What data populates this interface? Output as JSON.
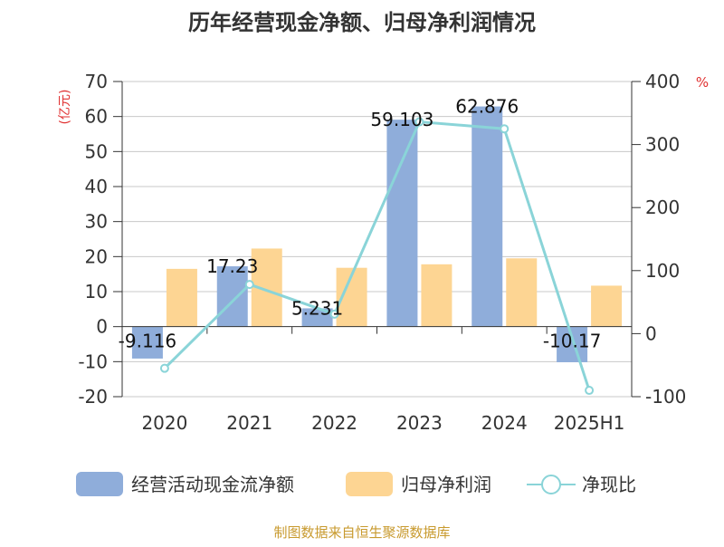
{
  "chart_data": {
    "type": "bar",
    "title": "历年经营现金净额、归母净利润情况",
    "categories": [
      "2020",
      "2021",
      "2022",
      "2023",
      "2024",
      "2025H1"
    ],
    "y_left": {
      "unit_label": "(亿元)",
      "ylim": [
        -20,
        70
      ],
      "ticks": [
        70,
        60,
        50,
        40,
        30,
        20,
        10,
        0,
        -10,
        -20
      ]
    },
    "y_right": {
      "unit_label": "%",
      "ylim": [
        -100,
        400
      ],
      "ticks": [
        400,
        300,
        200,
        100,
        0,
        -100
      ]
    },
    "series": [
      {
        "name": "经营活动现金流净额",
        "type": "bar",
        "axis": "left",
        "color": "#8fadda",
        "values": [
          -9.116,
          17.23,
          5.231,
          59.103,
          62.876,
          -10.17
        ],
        "labels": [
          "-9.116",
          "17.23",
          "5.231",
          "59.103",
          "62.876",
          "-10.17"
        ]
      },
      {
        "name": "归母净利润",
        "type": "bar",
        "axis": "left",
        "color": "#fdd593",
        "values": [
          16.5,
          22.3,
          16.8,
          17.8,
          19.5,
          11.7
        ]
      },
      {
        "name": "净现比",
        "type": "line",
        "axis": "right",
        "color": "#8ad4d8",
        "values": [
          -55,
          78,
          31,
          336,
          325,
          -90
        ]
      }
    ],
    "grid": true,
    "legend": "bottom"
  },
  "source": "制图数据来自恒生聚源数据库"
}
